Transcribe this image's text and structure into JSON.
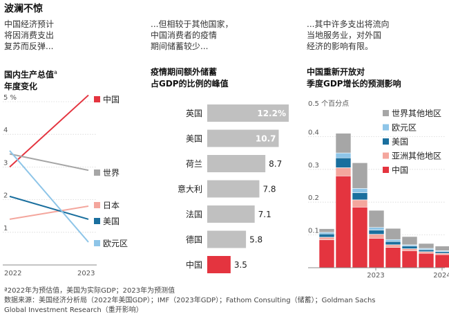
{
  "headline": "波澜不惊",
  "intro": [
    "中国经济预计\n将因消费支出\n复苏而反弹...",
    "...但相较于其他国家，\n中国消费者的疫情\n期间储蓄较少...",
    "...其中许多支出将流向\n当地服务业，对外国\n经济的影响有限。"
  ],
  "colors": {
    "china": "#e4343f",
    "usa": "#1a6f9e",
    "euro": "#8ec5e8",
    "japan": "#f4a69d",
    "world": "#a6a6a6",
    "other_asia": "#f4a69d"
  },
  "chart_data": [
    {
      "type": "line",
      "title": "国内生产总值",
      "title_sup": "a",
      "subtitle": "年度变化",
      "x": [
        "2022",
        "2023"
      ],
      "y_unit": "%",
      "ylim": [
        0,
        5
      ],
      "yticks": [
        0,
        1,
        2,
        3,
        4,
        5
      ],
      "ytick_labels": [
        "",
        "1",
        "2",
        "3",
        "4",
        "5"
      ],
      "series": [
        {
          "name": "中国",
          "values": [
            3.0,
            5.2
          ]
        },
        {
          "name": "世界",
          "values": [
            3.4,
            2.9
          ]
        },
        {
          "name": "日本",
          "values": [
            1.4,
            1.8
          ]
        },
        {
          "name": "美国",
          "values": [
            2.1,
            1.4
          ]
        },
        {
          "name": "欧元区",
          "values": [
            3.5,
            0.7
          ]
        }
      ]
    },
    {
      "type": "bar",
      "title": "疫情期间额外储蓄\n占GDP的比例的峰值",
      "categories": [
        "英国",
        "美国",
        "荷兰",
        "意大利",
        "法国",
        "德国",
        "中国"
      ],
      "values": [
        12.2,
        10.7,
        8.7,
        7.8,
        7.1,
        5.8,
        3.5
      ],
      "labels": [
        "12.2%",
        "10.7",
        "8.7",
        "7.8",
        "7.1",
        "5.8",
        "3.5"
      ]
    },
    {
      "type": "bar",
      "stacked": true,
      "title": "中国重新开放对\n季度GDP增长的预测影响",
      "y_unit_label": "0.5 个百分点",
      "ylim": [
        0,
        0.5
      ],
      "yticks": [
        0.1,
        0.2,
        0.3,
        0.4
      ],
      "ytick_labels": [
        "0.1",
        "0.2",
        "0.3",
        "0.4"
      ],
      "x_labels": [
        "2023",
        "2024"
      ],
      "x_label_quarters": [
        3.5,
        7.5
      ],
      "quarters": 9,
      "series": [
        {
          "name": "中国",
          "values": [
            0.085,
            0.28,
            0.185,
            0.09,
            0.062,
            0.052,
            0.044,
            0.04,
            0.036
          ]
        },
        {
          "name": "亚洲其他地区",
          "values": [
            0.008,
            0.025,
            0.022,
            0.012,
            0.008,
            0.006,
            0.005,
            0.004,
            0.003
          ]
        },
        {
          "name": "美国",
          "values": [
            0.01,
            0.03,
            0.022,
            0.013,
            0.01,
            0.008,
            0.006,
            0.005,
            0.004
          ]
        },
        {
          "name": "欧元区",
          "values": [
            0.005,
            0.015,
            0.013,
            0.008,
            0.006,
            0.004,
            0.004,
            0.003,
            0.003
          ]
        },
        {
          "name": "世界其他地区",
          "values": [
            0.011,
            0.06,
            0.078,
            0.052,
            0.034,
            0.025,
            0.015,
            0.014,
            0.014
          ]
        }
      ],
      "legend_order": [
        "世界其他地区",
        "欧元区",
        "美国",
        "亚洲其他地区",
        "中国"
      ]
    }
  ],
  "footnote": {
    "line1": "ª2022年为预估值，美国为实际GDP；2023年为预测值",
    "line2": "数据来源：美国经济分析局（2022年美国GDP）；IMF（2023年GDP）；Fathom Consulting（储蓄）；Goldman Sachs",
    "line3": "Global Investment Research（重开影响）"
  }
}
